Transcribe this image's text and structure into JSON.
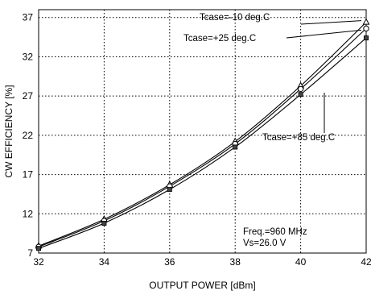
{
  "chart_data": {
    "type": "line",
    "xlabel": "OUTPUT POWER [dBm]",
    "ylabel": "CW EFFICIENCY [%]",
    "xlim": [
      32,
      42
    ],
    "ylim": [
      7,
      38
    ],
    "x_ticks": [
      32,
      34,
      36,
      38,
      40,
      42
    ],
    "y_ticks": [
      7,
      12,
      17,
      22,
      27,
      32,
      37
    ],
    "grid": true,
    "x": [
      32,
      34,
      36,
      38,
      40,
      42
    ],
    "series": [
      {
        "name": "Tcase=-10 deg.C",
        "marker": "triangle",
        "values": [
          7.9,
          11.3,
          15.7,
          21.2,
          28.3,
          36.4
        ]
      },
      {
        "name": "Tcase=+25  deg.C",
        "marker": "circle",
        "values": [
          7.8,
          11.1,
          15.5,
          20.9,
          27.9,
          35.6
        ]
      },
      {
        "name": "Tcase=+85  deg.C",
        "marker": "square",
        "values": [
          7.6,
          10.8,
          15.1,
          20.5,
          27.2,
          34.4
        ]
      }
    ],
    "annotations": [
      "Freq.=960  MHz",
      "Vs=26.0  V"
    ]
  }
}
